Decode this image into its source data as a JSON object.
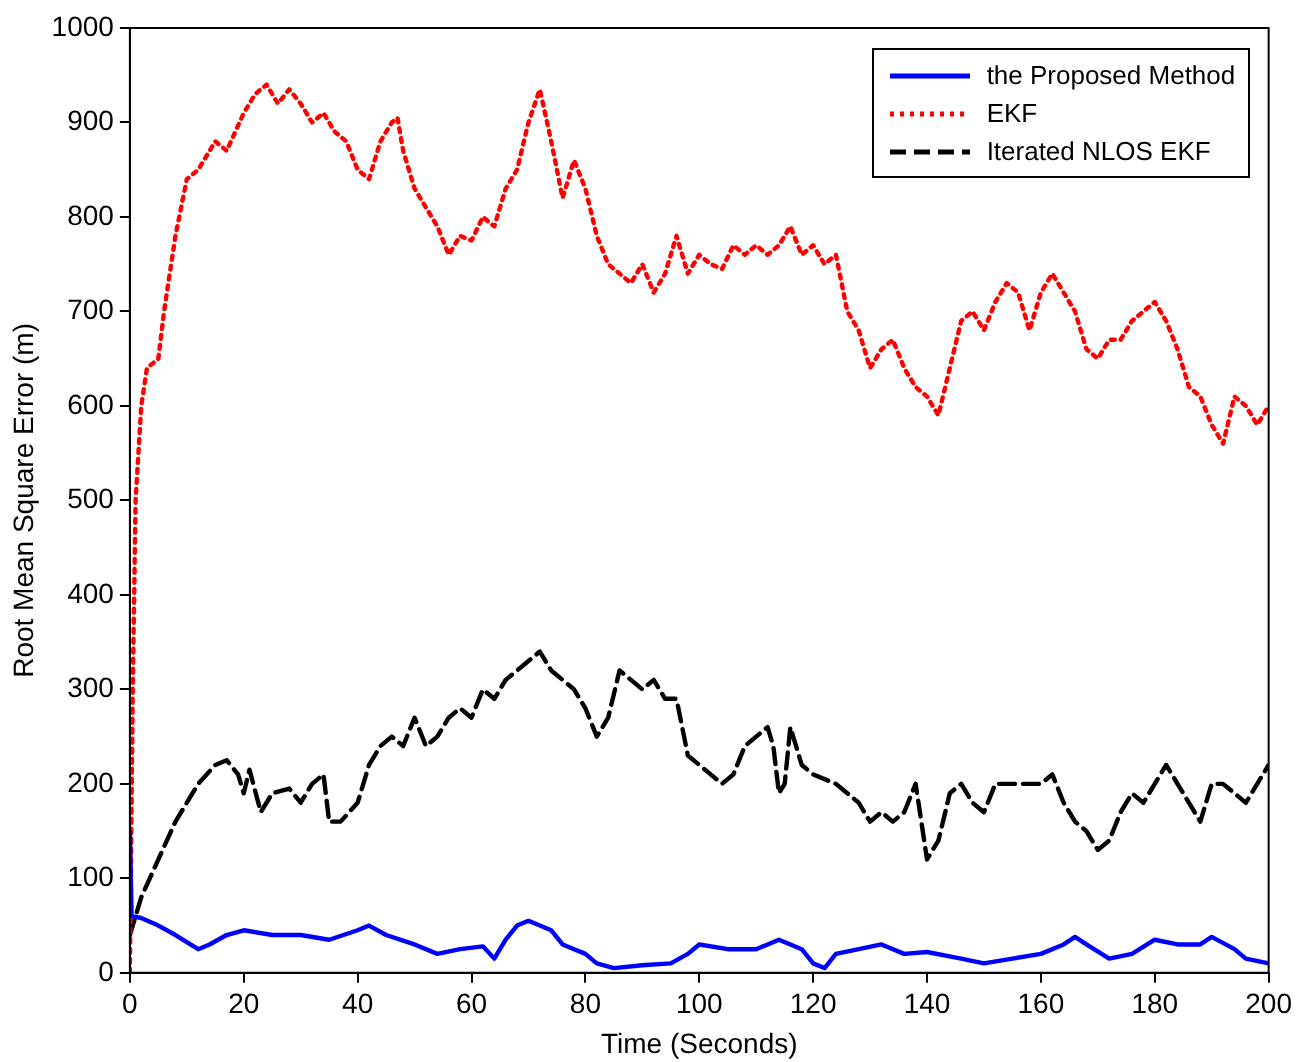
{
  "chart_data": {
    "type": "line",
    "xlabel": "Time (Seconds)",
    "ylabel": "Root Mean Square Error (m)",
    "xlim": [
      0,
      200
    ],
    "xticks": [
      0,
      20,
      40,
      60,
      80,
      100,
      120,
      140,
      160,
      180,
      200
    ],
    "ylim": [
      0,
      1000
    ],
    "yticks": [
      0,
      100,
      200,
      300,
      400,
      500,
      600,
      700,
      800,
      900,
      1000
    ],
    "grid": false,
    "legend": "top right",
    "marker": "none",
    "series": [
      {
        "name": "the Proposed Method",
        "color": "#0000ff",
        "line_style": "solid",
        "x": [
          0,
          0.3,
          2,
          5,
          8,
          12,
          14,
          17,
          20,
          25,
          30,
          35,
          40,
          42,
          45,
          50,
          54,
          58,
          62,
          64,
          66,
          68,
          70,
          74,
          76,
          80,
          82,
          85,
          90,
          95,
          98,
          100,
          105,
          110,
          114,
          118,
          120,
          122,
          124,
          128,
          132,
          136,
          140,
          146,
          150,
          155,
          160,
          164,
          166,
          168,
          172,
          176,
          180,
          184,
          188,
          190,
          194,
          196,
          200
        ],
        "values": [
          150,
          60,
          58,
          50,
          40,
          25,
          30,
          40,
          45,
          40,
          40,
          35,
          45,
          50,
          40,
          30,
          20,
          25,
          28,
          15,
          35,
          50,
          55,
          45,
          30,
          20,
          10,
          5,
          8,
          10,
          20,
          30,
          25,
          25,
          35,
          25,
          10,
          5,
          20,
          25,
          30,
          20,
          22,
          15,
          10,
          15,
          20,
          30,
          38,
          30,
          15,
          20,
          35,
          30,
          30,
          38,
          25,
          15,
          10
        ]
      },
      {
        "name": "EKF",
        "color": "#ff0000",
        "line_style": "dotted",
        "x": [
          0,
          0.5,
          1,
          2,
          3,
          5,
          6,
          8,
          10,
          12,
          15,
          17,
          20,
          22,
          24,
          26,
          28,
          30,
          32,
          34,
          36,
          38,
          40,
          42,
          44,
          46,
          47,
          48,
          50,
          52,
          54,
          56,
          58,
          60,
          62,
          64,
          66,
          68,
          70,
          72,
          74,
          76,
          78,
          80,
          82,
          84,
          86,
          88,
          90,
          92,
          94,
          96,
          98,
          100,
          102,
          104,
          106,
          108,
          110,
          112,
          114,
          116,
          118,
          120,
          122,
          124,
          126,
          128,
          130,
          132,
          134,
          136,
          138,
          140,
          142,
          144,
          146,
          148,
          150,
          152,
          154,
          156,
          158,
          160,
          162,
          164,
          166,
          168,
          170,
          172,
          174,
          176,
          178,
          180,
          182,
          184,
          186,
          188,
          190,
          192,
          194,
          196,
          198,
          200
        ],
        "values": [
          0,
          300,
          500,
          600,
          640,
          650,
          700,
          780,
          840,
          850,
          880,
          870,
          910,
          930,
          940,
          920,
          935,
          920,
          900,
          910,
          890,
          880,
          850,
          840,
          880,
          900,
          905,
          870,
          830,
          810,
          790,
          760,
          780,
          775,
          800,
          790,
          830,
          850,
          900,
          935,
          880,
          820,
          860,
          830,
          780,
          750,
          740,
          730,
          750,
          720,
          740,
          780,
          740,
          760,
          750,
          745,
          770,
          760,
          770,
          760,
          770,
          790,
          760,
          770,
          750,
          760,
          700,
          680,
          640,
          660,
          670,
          640,
          620,
          610,
          590,
          640,
          690,
          700,
          680,
          710,
          730,
          720,
          680,
          720,
          740,
          720,
          700,
          660,
          650,
          670,
          670,
          690,
          700,
          710,
          690,
          660,
          620,
          610,
          580,
          560,
          610,
          600,
          580,
          600
        ]
      },
      {
        "name": "Iterated NLOS EKF",
        "color": "#000000",
        "line_style": "dashed",
        "x": [
          0,
          2,
          5,
          8,
          12,
          15,
          17,
          19,
          20,
          21,
          23,
          25,
          28,
          30,
          32,
          34,
          35,
          37,
          40,
          42,
          44,
          46,
          48,
          50,
          52,
          54,
          56,
          58,
          60,
          62,
          64,
          66,
          68,
          70,
          72,
          74,
          76,
          78,
          80,
          82,
          84,
          86,
          88,
          90,
          92,
          94,
          96,
          98,
          100,
          102,
          104,
          106,
          108,
          110,
          112,
          113,
          114,
          115,
          116,
          118,
          120,
          124,
          126,
          128,
          130,
          132,
          134,
          136,
          138,
          140,
          142,
          144,
          146,
          148,
          150,
          152,
          156,
          160,
          162,
          164,
          166,
          168,
          170,
          172,
          174,
          176,
          178,
          180,
          182,
          184,
          186,
          188,
          190,
          192,
          194,
          196,
          198,
          200
        ],
        "values": [
          40,
          80,
          120,
          160,
          200,
          220,
          225,
          210,
          190,
          215,
          170,
          190,
          195,
          180,
          200,
          210,
          160,
          160,
          180,
          220,
          240,
          250,
          240,
          270,
          240,
          250,
          270,
          280,
          270,
          300,
          290,
          310,
          320,
          330,
          340,
          320,
          310,
          300,
          280,
          250,
          270,
          320,
          310,
          300,
          310,
          290,
          290,
          230,
          220,
          210,
          200,
          210,
          240,
          250,
          260,
          240,
          190,
          200,
          260,
          220,
          210,
          200,
          190,
          180,
          160,
          170,
          160,
          170,
          200,
          120,
          140,
          190,
          200,
          180,
          170,
          200,
          200,
          200,
          210,
          180,
          160,
          150,
          130,
          140,
          170,
          190,
          180,
          200,
          220,
          200,
          180,
          160,
          200,
          200,
          190,
          180,
          200,
          220
        ]
      }
    ]
  }
}
